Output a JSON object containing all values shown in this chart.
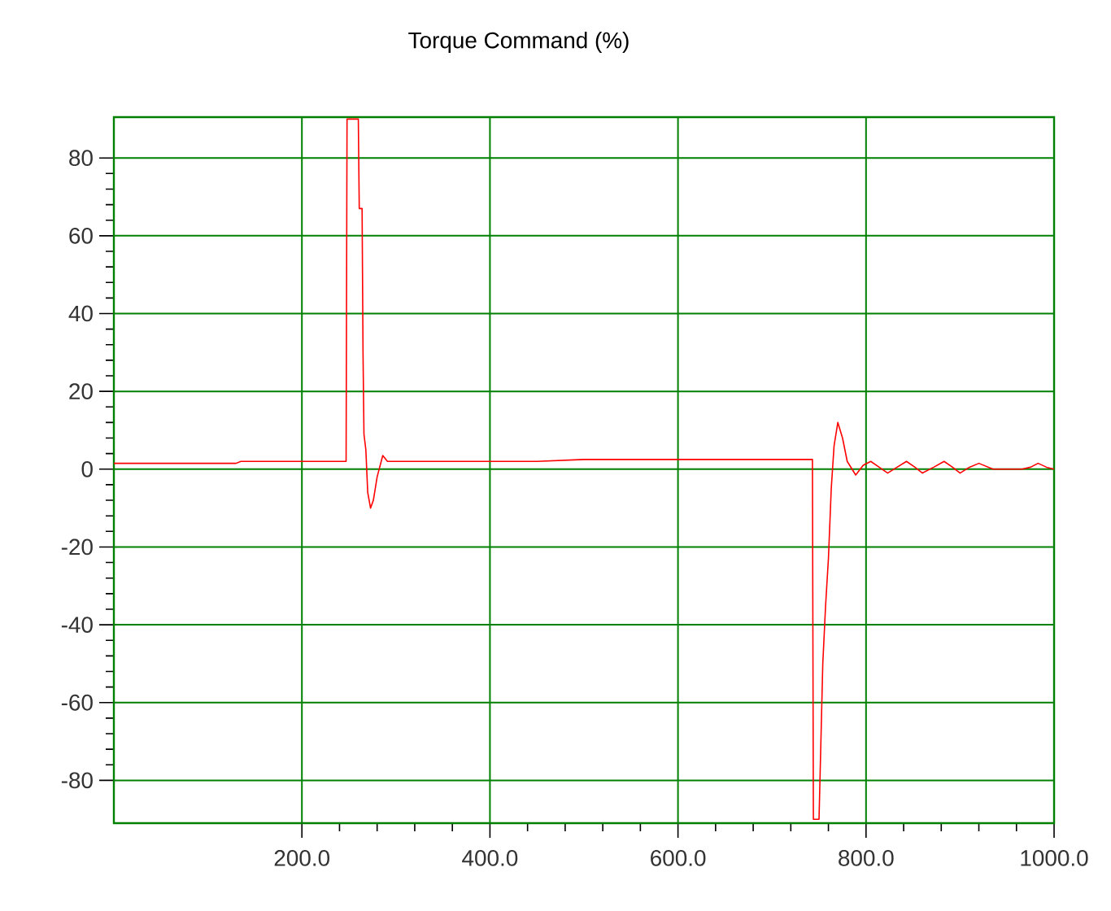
{
  "chart_data": {
    "type": "line",
    "title": "Torque Command (%)",
    "xlim": [
      0,
      1000
    ],
    "ylim": [
      -91,
      90.5
    ],
    "xticks": [
      {
        "value": 200,
        "label": "200.0"
      },
      {
        "value": 400,
        "label": "400.0"
      },
      {
        "value": 600,
        "label": "600.0"
      },
      {
        "value": 800,
        "label": "800.0"
      },
      {
        "value": 1000,
        "label": "1000.0"
      }
    ],
    "yticks": [
      -80,
      -60,
      -40,
      -20,
      0,
      20,
      40,
      60,
      80
    ],
    "grid": true,
    "marker": "none",
    "line_style": "solid",
    "series": [
      {
        "color": "#ff0000",
        "x": [
          0,
          130,
          135,
          160,
          200,
          230,
          247,
          248,
          260,
          261,
          264,
          265,
          266,
          268,
          270,
          273,
          276,
          280,
          286,
          291,
          300,
          350,
          400,
          450,
          500,
          550,
          600,
          650,
          700,
          743,
          744,
          750,
          752,
          754,
          757,
          760,
          763,
          766,
          770,
          775,
          780,
          789,
          797,
          805,
          814,
          823,
          833,
          843,
          852,
          860,
          872,
          883,
          892,
          900,
          910,
          920,
          935,
          966,
          975,
          983,
          992,
          1000
        ],
        "values": [
          1.5,
          1.5,
          2,
          2,
          2,
          2,
          2,
          90,
          90,
          67,
          67,
          30,
          9,
          5,
          -6,
          -10,
          -8,
          -2,
          3.5,
          2,
          2,
          2,
          2,
          2,
          2.5,
          2.5,
          2.5,
          2.5,
          2.5,
          2.5,
          -90,
          -90,
          -70,
          -50,
          -35,
          -23,
          -5,
          6,
          12,
          8,
          2,
          -1.5,
          1,
          2,
          0.5,
          -1,
          0.5,
          2,
          0.5,
          -1,
          0.5,
          2,
          0.5,
          -1,
          0.5,
          1.5,
          0,
          0,
          0.5,
          1.5,
          0.5,
          0
        ]
      }
    ]
  }
}
